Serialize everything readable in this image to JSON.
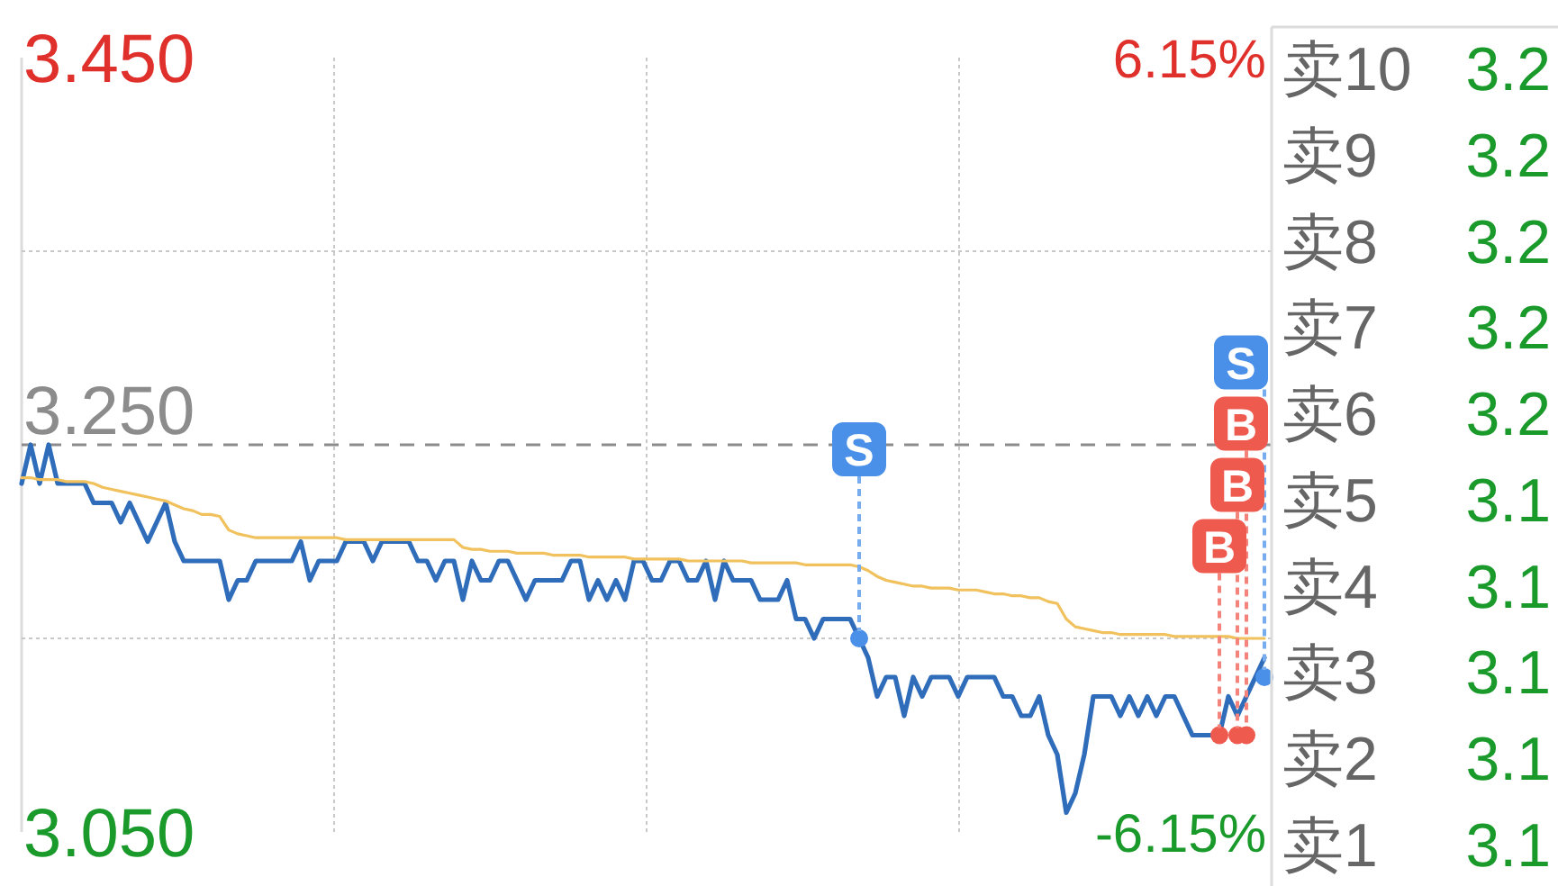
{
  "chart_data": [
    {
      "type": "line",
      "categories": [
        null,
        null,
        null,
        null,
        null,
        null,
        null,
        null,
        null,
        null,
        null,
        null,
        null,
        null,
        null,
        null,
        null,
        null,
        null,
        null,
        null,
        null,
        null,
        null,
        null,
        null,
        null,
        null,
        null,
        null,
        null,
        null,
        null,
        null,
        null,
        null,
        null,
        null,
        null,
        null,
        null,
        null,
        null,
        null,
        null,
        null,
        null,
        null,
        null,
        null,
        null,
        null,
        null,
        null,
        null,
        null,
        null,
        null,
        null,
        null,
        null,
        null,
        null,
        null,
        null,
        null,
        null,
        null,
        null,
        null,
        null,
        null,
        null,
        null,
        null,
        null,
        null,
        null,
        null,
        null,
        null,
        null,
        null,
        null,
        null,
        null,
        null,
        null,
        null,
        null,
        null,
        null,
        null,
        null,
        null,
        null,
        null,
        null,
        null,
        null,
        null,
        null,
        null,
        null,
        null,
        null,
        null,
        null,
        null,
        null,
        null,
        null,
        null,
        null,
        null,
        null,
        null,
        null,
        null,
        null,
        null,
        null,
        null,
        null,
        null,
        null,
        null,
        null,
        null,
        null,
        null,
        null,
        null,
        null,
        null,
        null,
        null,
        null,
        null
      ],
      "series": [
        {
          "color": "#2f6dbb",
          "values": [
            3.23,
            3.25,
            3.23,
            3.25,
            3.23,
            3.23,
            3.23,
            3.23,
            3.22,
            3.22,
            3.22,
            3.21,
            3.22,
            3.21,
            3.2,
            3.21,
            3.22,
            3.2,
            3.19,
            3.19,
            3.19,
            3.19,
            3.19,
            3.17,
            3.18,
            3.18,
            3.19,
            3.19,
            3.19,
            3.19,
            3.19,
            3.2,
            3.18,
            3.19,
            3.19,
            3.19,
            3.2,
            3.2,
            3.2,
            3.19,
            3.2,
            3.2,
            3.2,
            3.2,
            3.19,
            3.19,
            3.18,
            3.19,
            3.19,
            3.17,
            3.19,
            3.18,
            3.18,
            3.19,
            3.19,
            3.18,
            3.17,
            3.18,
            3.18,
            3.18,
            3.18,
            3.19,
            3.19,
            3.17,
            3.18,
            3.17,
            3.18,
            3.17,
            3.19,
            3.19,
            3.18,
            3.18,
            3.19,
            3.19,
            3.18,
            3.18,
            3.19,
            3.17,
            3.19,
            3.18,
            3.18,
            3.18,
            3.17,
            3.17,
            3.17,
            3.18,
            3.16,
            3.16,
            3.15,
            3.16,
            3.16,
            3.16,
            3.16,
            3.15,
            3.14,
            3.12,
            3.13,
            3.13,
            3.11,
            3.13,
            3.12,
            3.13,
            3.13,
            3.13,
            3.12,
            3.13,
            3.13,
            3.13,
            3.13,
            3.12,
            3.12,
            3.11,
            3.11,
            3.12,
            3.1,
            3.09,
            3.06,
            3.07,
            3.09,
            3.12,
            3.12,
            3.12,
            3.11,
            3.12,
            3.11,
            3.12,
            3.11,
            3.12,
            3.12,
            3.11,
            3.1,
            3.1,
            3.1,
            3.1,
            3.12,
            3.11,
            3.12,
            3.13,
            3.14
          ]
        },
        {
          "color": "#f0c15c",
          "values": [
            3.233,
            3.233,
            3.232,
            3.232,
            3.232,
            3.231,
            3.231,
            3.231,
            3.23,
            3.228,
            3.227,
            3.226,
            3.225,
            3.224,
            3.223,
            3.222,
            3.221,
            3.219,
            3.217,
            3.216,
            3.214,
            3.214,
            3.213,
            3.206,
            3.204,
            3.203,
            3.202,
            3.202,
            3.202,
            3.202,
            3.202,
            3.202,
            3.202,
            3.202,
            3.202,
            3.202,
            3.201,
            3.201,
            3.201,
            3.201,
            3.201,
            3.201,
            3.201,
            3.201,
            3.201,
            3.201,
            3.201,
            3.201,
            3.201,
            3.197,
            3.196,
            3.196,
            3.195,
            3.195,
            3.195,
            3.194,
            3.194,
            3.194,
            3.194,
            3.193,
            3.193,
            3.193,
            3.193,
            3.192,
            3.192,
            3.192,
            3.192,
            3.192,
            3.191,
            3.191,
            3.191,
            3.191,
            3.191,
            3.191,
            3.19,
            3.19,
            3.19,
            3.19,
            3.19,
            3.19,
            3.19,
            3.189,
            3.189,
            3.189,
            3.189,
            3.189,
            3.189,
            3.188,
            3.188,
            3.188,
            3.188,
            3.188,
            3.188,
            3.187,
            3.185,
            3.182,
            3.18,
            3.179,
            3.178,
            3.177,
            3.177,
            3.176,
            3.176,
            3.176,
            3.175,
            3.175,
            3.175,
            3.174,
            3.173,
            3.173,
            3.172,
            3.172,
            3.171,
            3.171,
            3.169,
            3.168,
            3.16,
            3.156,
            3.155,
            3.154,
            3.153,
            3.153,
            3.152,
            3.152,
            3.152,
            3.152,
            3.152,
            3.152,
            3.151,
            3.151,
            3.151,
            3.151,
            3.151,
            3.151,
            3.151,
            3.15,
            3.15,
            3.15,
            3.15
          ]
        },
        {
          "type": "scatter",
          "color": "#4a90e8",
          "marker": "circle",
          "values": [
            null,
            null,
            null,
            null,
            null,
            null,
            null,
            null,
            null,
            null,
            null,
            null,
            null,
            null,
            null,
            null,
            null,
            null,
            null,
            null,
            null,
            null,
            null,
            null,
            null,
            null,
            null,
            null,
            null,
            null,
            null,
            null,
            null,
            null,
            null,
            null,
            null,
            null,
            null,
            null,
            null,
            null,
            null,
            null,
            null,
            null,
            null,
            null,
            null,
            null,
            null,
            null,
            null,
            null,
            null,
            null,
            null,
            null,
            null,
            null,
            null,
            null,
            null,
            null,
            null,
            null,
            null,
            null,
            null,
            null,
            null,
            null,
            null,
            null,
            null,
            null,
            null,
            null,
            null,
            null,
            null,
            null,
            null,
            null,
            null,
            null,
            null,
            null,
            null,
            null,
            null,
            null,
            null,
            3.15,
            null,
            null,
            null,
            null,
            null,
            null,
            null,
            null,
            null,
            null,
            null,
            null,
            null,
            null,
            null,
            null,
            null,
            null,
            null,
            null,
            null,
            null,
            null,
            null,
            null,
            null,
            null,
            null,
            null,
            null,
            null,
            null,
            null,
            null,
            null,
            null,
            null,
            null,
            null,
            null,
            null,
            null,
            null,
            null,
            3.13
          ],
          "value_labels": [
            null,
            null,
            null,
            null,
            null,
            null,
            null,
            null,
            null,
            null,
            null,
            null,
            null,
            null,
            null,
            null,
            null,
            null,
            null,
            null,
            null,
            null,
            null,
            null,
            null,
            null,
            null,
            null,
            null,
            null,
            null,
            null,
            null,
            null,
            null,
            null,
            null,
            null,
            null,
            null,
            null,
            null,
            null,
            null,
            null,
            null,
            null,
            null,
            null,
            null,
            null,
            null,
            null,
            null,
            null,
            null,
            null,
            null,
            null,
            null,
            null,
            null,
            null,
            null,
            null,
            null,
            null,
            null,
            null,
            null,
            null,
            null,
            null,
            null,
            null,
            null,
            null,
            null,
            null,
            null,
            null,
            null,
            null,
            null,
            null,
            null,
            null,
            null,
            null,
            null,
            null,
            null,
            null,
            "S",
            null,
            null,
            null,
            null,
            null,
            null,
            null,
            null,
            null,
            null,
            null,
            null,
            null,
            null,
            null,
            null,
            null,
            null,
            null,
            null,
            null,
            null,
            null,
            null,
            null,
            null,
            null,
            null,
            null,
            null,
            null,
            null,
            null,
            null,
            null,
            null,
            null,
            null,
            null,
            null,
            null,
            null,
            null,
            null,
            "S"
          ]
        },
        {
          "type": "scatter",
          "color": "#ef5a4f",
          "marker": "circle",
          "values": [
            null,
            null,
            null,
            null,
            null,
            null,
            null,
            null,
            null,
            null,
            null,
            null,
            null,
            null,
            null,
            null,
            null,
            null,
            null,
            null,
            null,
            null,
            null,
            null,
            null,
            null,
            null,
            null,
            null,
            null,
            null,
            null,
            null,
            null,
            null,
            null,
            null,
            null,
            null,
            null,
            null,
            null,
            null,
            null,
            null,
            null,
            null,
            null,
            null,
            null,
            null,
            null,
            null,
            null,
            null,
            null,
            null,
            null,
            null,
            null,
            null,
            null,
            null,
            null,
            null,
            null,
            null,
            null,
            null,
            null,
            null,
            null,
            null,
            null,
            null,
            null,
            null,
            null,
            null,
            null,
            null,
            null,
            null,
            null,
            null,
            null,
            null,
            null,
            null,
            null,
            null,
            null,
            null,
            null,
            null,
            null,
            null,
            null,
            null,
            null,
            null,
            null,
            null,
            null,
            null,
            null,
            null,
            null,
            null,
            null,
            null,
            null,
            null,
            null,
            null,
            null,
            null,
            null,
            null,
            null,
            null,
            null,
            null,
            null,
            null,
            null,
            null,
            null,
            null,
            null,
            null,
            null,
            null,
            3.1,
            null,
            3.1,
            3.1,
            null,
            null
          ],
          "value_labels": [
            null,
            null,
            null,
            null,
            null,
            null,
            null,
            null,
            null,
            null,
            null,
            null,
            null,
            null,
            null,
            null,
            null,
            null,
            null,
            null,
            null,
            null,
            null,
            null,
            null,
            null,
            null,
            null,
            null,
            null,
            null,
            null,
            null,
            null,
            null,
            null,
            null,
            null,
            null,
            null,
            null,
            null,
            null,
            null,
            null,
            null,
            null,
            null,
            null,
            null,
            null,
            null,
            null,
            null,
            null,
            null,
            null,
            null,
            null,
            null,
            null,
            null,
            null,
            null,
            null,
            null,
            null,
            null,
            null,
            null,
            null,
            null,
            null,
            null,
            null,
            null,
            null,
            null,
            null,
            null,
            null,
            null,
            null,
            null,
            null,
            null,
            null,
            null,
            null,
            null,
            null,
            null,
            null,
            null,
            null,
            null,
            null,
            null,
            null,
            null,
            null,
            null,
            null,
            null,
            null,
            null,
            null,
            null,
            null,
            null,
            null,
            null,
            null,
            null,
            null,
            null,
            null,
            null,
            null,
            null,
            null,
            null,
            null,
            null,
            null,
            null,
            null,
            null,
            null,
            null,
            null,
            null,
            null,
            "B",
            null,
            "B",
            "B",
            null,
            null
          ]
        }
      ],
      "ylim": [
        3.05,
        3.45
      ],
      "yticks": [
        {
          "value": 3.45,
          "label": "3.450"
        },
        {
          "value": 3.35,
          "label": null
        },
        {
          "value": 3.15,
          "label": null
        },
        {
          "value": 3.05,
          "label": "3.050"
        }
      ],
      "y2lim": [
        -6.15,
        6.15
      ],
      "y2ticks": [
        {
          "value": 6.15,
          "label": "6.15%"
        },
        {
          "value": -6.15,
          "label": "-6.15%"
        }
      ],
      "ref_lines": [
        {
          "axis": "y",
          "value": 3.25,
          "label": "3.250",
          "color": "#8c8c8c",
          "line_style": "dashed"
        }
      ],
      "grid": true
    },
    {
      "type": "other",
      "categories": [
        "卖10",
        "卖9",
        "卖8",
        "卖7",
        "卖6",
        "卖5",
        "卖4",
        "卖3",
        "卖2",
        "卖1"
      ],
      "annotations": [
        "3.2",
        "3.2",
        "3.2",
        "3.2",
        "3.2",
        "3.1",
        "3.1",
        "3.1",
        "3.1",
        "3.1"
      ]
    }
  ]
}
